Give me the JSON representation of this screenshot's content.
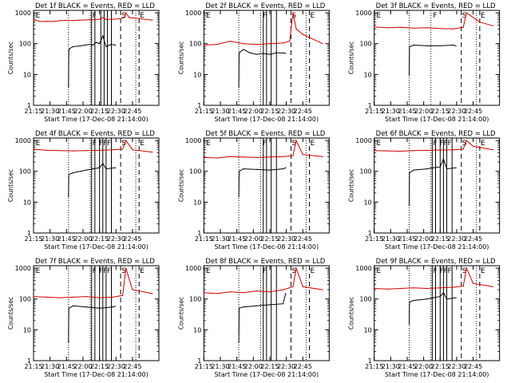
{
  "chart_data": [
    {
      "type": "line",
      "title": "Det 1f BLACK = Events, RED = LLD",
      "xlabel": "Start Time (17-Dec-08 21:14:00)",
      "ylabel": "Counts/sec",
      "x_ticks": [
        "21:15",
        "21:30",
        "21:45",
        "22:00",
        "22:15",
        "22:30",
        "22:45"
      ],
      "y_ticks": [
        "1",
        "10",
        "100",
        "1000"
      ],
      "ylim": [
        1,
        1200
      ],
      "y_scale": "log",
      "flags": [
        "E",
        "F",
        "S",
        "E"
      ],
      "series": [
        {
          "name": "Events",
          "color": "#000000",
          "x": [
            21.53,
            21.535,
            21.55,
            21.6,
            21.72,
            21.78,
            21.85,
            21.9,
            21.95,
            22.0,
            22.05,
            22.1,
            22.15,
            22.18,
            22.24
          ],
          "y": [
            4,
            60,
            70,
            80,
            85,
            90,
            95,
            90,
            110,
            100,
            180,
            80,
            90,
            95,
            90
          ]
        },
        {
          "name": "LLD",
          "color": "#cc0000",
          "x": [
            21.0,
            21.1,
            21.2,
            21.3,
            21.4,
            21.5,
            21.6,
            21.7,
            21.8,
            21.9,
            22.0,
            22.05,
            22.1,
            22.2,
            22.3,
            22.38,
            22.4,
            22.45,
            22.6,
            22.8
          ],
          "y": [
            600,
            520,
            530,
            520,
            560,
            570,
            560,
            580,
            590,
            600,
            620,
            700,
            610,
            620,
            640,
            700,
            1000,
            700,
            650,
            580
          ]
        }
      ],
      "vlines_solid": [
        21.88,
        21.93,
        22.02,
        22.07,
        22.12,
        22.18
      ],
      "vlines_dashed": [
        22.32,
        22.6
      ],
      "vlines_dotted": [
        21.53,
        21.86,
        22.55
      ]
    },
    {
      "type": "line",
      "title": "Det 2f BLACK = Events, RED = LLD",
      "xlabel": "Start Time (17-Dec-08 21:14:00)",
      "ylabel": "Counts/sec",
      "x_ticks": [
        "21:15",
        "21:30",
        "21:45",
        "22:00",
        "22:15",
        "22:30",
        "22:45"
      ],
      "y_ticks": [
        "1",
        "10",
        "100",
        "1000"
      ],
      "ylim": [
        1,
        1200
      ],
      "y_scale": "log",
      "flags": [
        "E",
        "F",
        "S",
        "E"
      ],
      "series": [
        {
          "name": "Events",
          "color": "#000000",
          "x": [
            21.53,
            21.535,
            21.6,
            21.7,
            21.8,
            21.9,
            22.0,
            22.1,
            22.2,
            22.24
          ],
          "y": [
            4,
            50,
            65,
            50,
            45,
            48,
            45,
            50,
            50,
            48
          ]
        },
        {
          "name": "LLD",
          "color": "#cc0000",
          "x": [
            21.0,
            21.2,
            21.4,
            21.6,
            21.8,
            22.0,
            22.2,
            22.3,
            22.35,
            22.4,
            22.5,
            22.8
          ],
          "y": [
            90,
            95,
            120,
            100,
            95,
            100,
            105,
            120,
            1000,
            300,
            200,
            100
          ]
        }
      ],
      "vlines_solid": [
        21.9,
        21.95,
        22.02,
        22.1
      ],
      "vlines_dashed": [
        22.32,
        22.6
      ],
      "vlines_dotted": [
        21.53,
        21.86,
        22.55
      ]
    },
    {
      "type": "line",
      "title": "Det 3f BLACK = Events, RED = LLD",
      "xlabel": "Start Time (17-Dec-08 21:14:00)",
      "ylabel": "Counts/sec",
      "x_ticks": [
        "21:15",
        "21:30",
        "21:45",
        "22:00",
        "22:15",
        "22:30",
        "22:45"
      ],
      "y_ticks": [
        "1",
        "10",
        "100",
        "1000"
      ],
      "ylim": [
        1,
        1200
      ],
      "y_scale": "log",
      "flags": [
        "E",
        "F",
        "S",
        "E"
      ],
      "series": [
        {
          "name": "Events",
          "color": "#000000",
          "x": [
            21.53,
            21.535,
            21.6,
            21.8,
            22.0,
            22.2,
            22.24
          ],
          "y": [
            10,
            80,
            90,
            85,
            85,
            90,
            85
          ]
        },
        {
          "name": "LLD",
          "color": "#cc0000",
          "x": [
            21.0,
            21.2,
            21.4,
            21.6,
            21.8,
            22.0,
            22.2,
            22.35,
            22.4,
            22.6,
            22.8
          ],
          "y": [
            350,
            330,
            340,
            320,
            330,
            310,
            300,
            340,
            1000,
            500,
            380
          ]
        }
      ],
      "vlines_solid": [],
      "vlines_dashed": [
        22.32,
        22.6
      ],
      "vlines_dotted": [
        21.53,
        21.86,
        22.55
      ]
    },
    {
      "type": "line",
      "title": "Det 4f BLACK = Events, RED = LLD",
      "xlabel": "Start Time (17-Dec-08 21:14:00)",
      "ylabel": "Counts/sec",
      "x_ticks": [
        "21:15",
        "21:30",
        "21:45",
        "22:00",
        "22:15",
        "22:30",
        "22:45"
      ],
      "y_ticks": [
        "1",
        "10",
        "100",
        "1000"
      ],
      "ylim": [
        1,
        1200
      ],
      "y_scale": "log",
      "flags": [
        "E",
        "F",
        "FF",
        "F",
        "S",
        "E"
      ],
      "series": [
        {
          "name": "Events",
          "color": "#000000",
          "x": [
            21.53,
            21.535,
            21.6,
            21.8,
            21.9,
            22.0,
            22.05,
            22.1,
            22.24
          ],
          "y": [
            15,
            80,
            90,
            110,
            120,
            130,
            180,
            120,
            130
          ]
        },
        {
          "name": "LLD",
          "color": "#cc0000",
          "x": [
            21.0,
            21.2,
            21.4,
            21.6,
            21.8,
            22.0,
            22.2,
            22.35,
            22.4,
            22.5,
            22.8
          ],
          "y": [
            520,
            480,
            470,
            460,
            470,
            480,
            500,
            520,
            1000,
            500,
            420
          ]
        }
      ],
      "vlines_solid": [
        21.88,
        21.93,
        22.0,
        22.05,
        22.1,
        22.18
      ],
      "vlines_dashed": [
        22.32,
        22.6
      ],
      "vlines_dotted": [
        21.53,
        21.86,
        22.55
      ]
    },
    {
      "type": "line",
      "title": "Det 5f BLACK = Events, RED = LLD",
      "xlabel": "Start Time (17-Dec-08 21:14:00)",
      "ylabel": "Counts/sec",
      "x_ticks": [
        "21:15",
        "21:30",
        "21:45",
        "22:00",
        "22:15",
        "22:30",
        "22:45"
      ],
      "y_ticks": [
        "1",
        "10",
        "100",
        "1000"
      ],
      "ylim": [
        1,
        1200
      ],
      "y_scale": "log",
      "flags": [
        "E",
        "F",
        "S",
        "E"
      ],
      "series": [
        {
          "name": "Events",
          "color": "#000000",
          "x": [
            21.53,
            21.535,
            21.6,
            21.8,
            22.0,
            22.2,
            22.24
          ],
          "y": [
            15,
            100,
            120,
            115,
            110,
            120,
            130
          ]
        },
        {
          "name": "LLD",
          "color": "#cc0000",
          "x": [
            21.0,
            21.2,
            21.4,
            21.6,
            21.8,
            22.0,
            22.2,
            22.35,
            22.4,
            22.5,
            22.8
          ],
          "y": [
            280,
            270,
            300,
            290,
            280,
            290,
            300,
            320,
            1000,
            350,
            300
          ]
        }
      ],
      "vlines_solid": [
        21.9,
        21.95,
        22.02,
        22.1
      ],
      "vlines_dashed": [
        22.32,
        22.6
      ],
      "vlines_dotted": [
        21.53,
        21.86,
        22.55
      ]
    },
    {
      "type": "line",
      "title": "Det 6f BLACK = Events, RED = LLD",
      "xlabel": "Start Time (17-Dec-08 21:14:00)",
      "ylabel": "Counts/sec",
      "x_ticks": [
        "21:15",
        "21:30",
        "21:45",
        "22:00",
        "22:15",
        "22:30",
        "22:45"
      ],
      "y_ticks": [
        "1",
        "10",
        "100",
        "1000"
      ],
      "ylim": [
        1,
        1200
      ],
      "y_scale": "log",
      "flags": [
        "E",
        "F",
        "FF",
        "F",
        "S",
        "E"
      ],
      "series": [
        {
          "name": "Events",
          "color": "#000000",
          "x": [
            21.53,
            21.535,
            21.6,
            21.8,
            21.9,
            22.0,
            22.05,
            22.1,
            22.24
          ],
          "y": [
            8,
            90,
            110,
            120,
            130,
            140,
            250,
            120,
            130
          ]
        },
        {
          "name": "LLD",
          "color": "#cc0000",
          "x": [
            21.0,
            21.2,
            21.4,
            21.6,
            21.8,
            22.0,
            22.2,
            22.35,
            22.4,
            22.5,
            22.8
          ],
          "y": [
            470,
            460,
            450,
            470,
            480,
            490,
            500,
            520,
            1000,
            650,
            500
          ]
        }
      ],
      "vlines_solid": [
        21.88,
        21.93,
        22.0,
        22.05,
        22.1,
        22.18
      ],
      "vlines_dashed": [
        22.32,
        22.6
      ],
      "vlines_dotted": [
        21.53,
        21.86,
        22.55
      ]
    },
    {
      "type": "line",
      "title": "Det 7f BLACK = Events, RED = LLD",
      "xlabel": "Start Time (17-Dec-08 21:14:00)",
      "ylabel": "Counts/sec",
      "x_ticks": [
        "21:15",
        "21:30",
        "21:45",
        "22:00",
        "22:15",
        "22:30",
        "22:45"
      ],
      "y_ticks": [
        "1",
        "10",
        "100",
        "1000"
      ],
      "ylim": [
        1,
        1200
      ],
      "y_scale": "log",
      "flags": [
        "E",
        "F",
        "FF",
        "F",
        "S",
        "E"
      ],
      "series": [
        {
          "name": "Events",
          "color": "#000000",
          "x": [
            21.53,
            21.535,
            21.6,
            21.8,
            22.0,
            22.2,
            22.24
          ],
          "y": [
            4,
            50,
            60,
            55,
            50,
            55,
            58
          ]
        },
        {
          "name": "LLD",
          "color": "#cc0000",
          "x": [
            21.0,
            21.2,
            21.4,
            21.6,
            21.8,
            22.0,
            22.2,
            22.35,
            22.4,
            22.5,
            22.8
          ],
          "y": [
            120,
            115,
            110,
            115,
            120,
            110,
            115,
            130,
            1000,
            200,
            150
          ]
        }
      ],
      "vlines_solid": [
        21.88,
        21.93,
        22.0,
        22.05,
        22.1,
        22.18
      ],
      "vlines_dashed": [
        22.32,
        22.6
      ],
      "vlines_dotted": [
        21.53,
        21.86,
        22.55
      ]
    },
    {
      "type": "line",
      "title": "Det 8f BLACK = Events, RED = LLD",
      "xlabel": "Start Time (17-Dec-08 21:14:00)",
      "ylabel": "Counts/sec",
      "x_ticks": [
        "21:15",
        "21:30",
        "21:45",
        "22:00",
        "22:15",
        "22:30",
        "22:45"
      ],
      "y_ticks": [
        "1",
        "10",
        "100",
        "1000"
      ],
      "ylim": [
        1,
        1200
      ],
      "y_scale": "log",
      "flags": [
        "E",
        "F",
        "S",
        "E"
      ],
      "series": [
        {
          "name": "Events",
          "color": "#000000",
          "x": [
            21.53,
            21.535,
            21.6,
            21.8,
            22.0,
            22.2,
            22.24
          ],
          "y": [
            4,
            50,
            55,
            60,
            65,
            70,
            150
          ]
        },
        {
          "name": "LLD",
          "color": "#cc0000",
          "x": [
            21.0,
            21.2,
            21.4,
            21.6,
            21.8,
            22.0,
            22.2,
            22.35,
            22.4,
            22.5,
            22.8
          ],
          "y": [
            160,
            150,
            170,
            160,
            180,
            170,
            200,
            250,
            1000,
            250,
            200
          ]
        }
      ],
      "vlines_solid": [
        21.9,
        21.95,
        22.02,
        22.1
      ],
      "vlines_dashed": [
        22.32,
        22.6
      ],
      "vlines_dotted": [
        21.53,
        21.86,
        22.55
      ]
    },
    {
      "type": "line",
      "title": "Det 9f BLACK = Events, RED = LLD",
      "xlabel": "Start Time (17-Dec-08 21:14:00)",
      "ylabel": "Counts/sec",
      "x_ticks": [
        "21:15",
        "21:30",
        "21:45",
        "22:00",
        "22:15",
        "22:30",
        "22:45"
      ],
      "y_ticks": [
        "1",
        "10",
        "100",
        "1000"
      ],
      "ylim": [
        1,
        1200
      ],
      "y_scale": "log",
      "flags": [
        "E",
        "F",
        "FF",
        "F",
        "S",
        "E"
      ],
      "series": [
        {
          "name": "Events",
          "color": "#000000",
          "x": [
            21.53,
            21.535,
            21.6,
            21.8,
            21.9,
            22.0,
            22.05,
            22.1,
            22.24
          ],
          "y": [
            15,
            80,
            90,
            100,
            110,
            120,
            160,
            100,
            110
          ]
        },
        {
          "name": "LLD",
          "color": "#cc0000",
          "x": [
            21.0,
            21.2,
            21.4,
            21.6,
            21.8,
            22.0,
            22.2,
            22.35,
            22.4,
            22.5,
            22.8
          ],
          "y": [
            220,
            210,
            220,
            230,
            220,
            230,
            240,
            260,
            1000,
            320,
            250
          ]
        }
      ],
      "vlines_solid": [
        21.88,
        21.93,
        22.0,
        22.05,
        22.1,
        22.18
      ],
      "vlines_dashed": [
        22.32,
        22.6
      ],
      "vlines_dotted": [
        21.53,
        21.86,
        22.55
      ]
    }
  ]
}
